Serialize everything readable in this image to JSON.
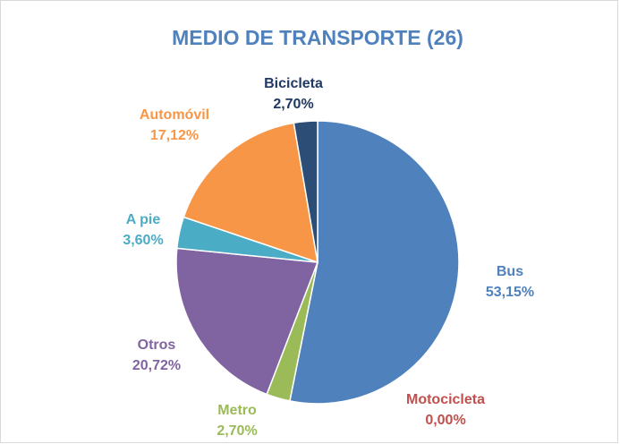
{
  "chart_data": {
    "type": "pie",
    "title": "MEDIO DE TRANSPORTE (26)",
    "categories": [
      "Bus",
      "Motocicleta",
      "Metro",
      "Otros",
      "A pie",
      "Automóvil",
      "Bicicleta"
    ],
    "values": [
      53.15,
      0.0,
      2.7,
      20.72,
      3.6,
      17.12,
      2.7
    ],
    "value_labels": [
      "53,15%",
      "0,00%",
      "2,70%",
      "20,72%",
      "3,60%",
      "17,12%",
      "2,70%"
    ],
    "colors": [
      "#4f81bd",
      "#c0504d",
      "#9bbb59",
      "#8064a2",
      "#4bacc6",
      "#f79646",
      "#2c4d75"
    ]
  }
}
